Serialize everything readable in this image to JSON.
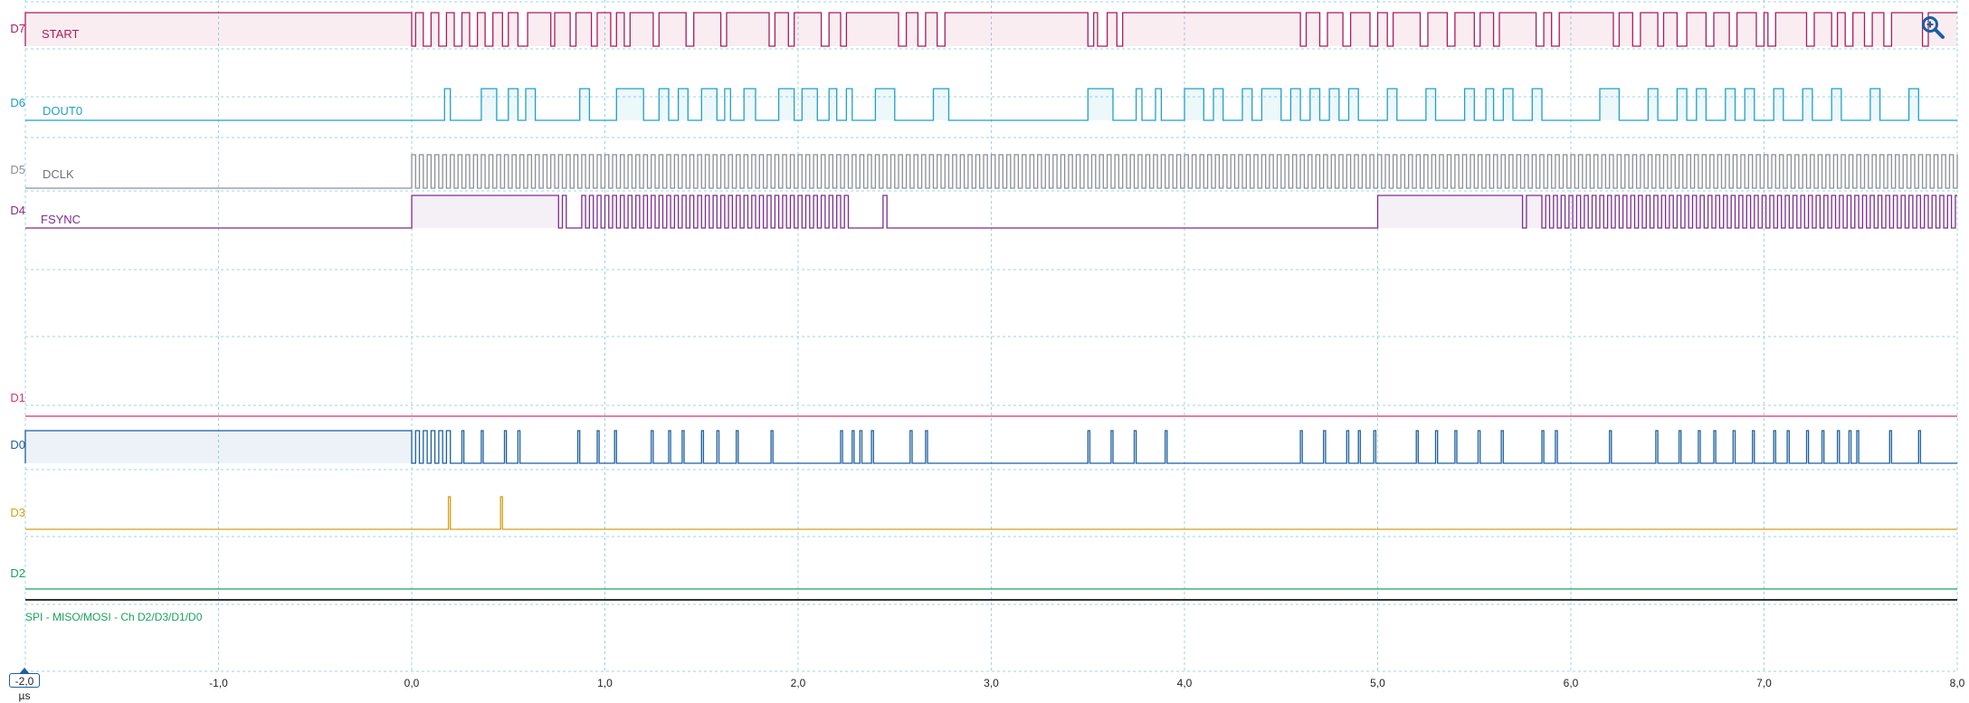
{
  "axis": {
    "unit": "µs",
    "t_min": -2.0,
    "t_max": 8.0,
    "tick_labels": [
      "-2,0 µs",
      "-1,0",
      "0,0",
      "1,0",
      "2,0",
      "3,0",
      "4,0",
      "5,0",
      "6,0",
      "7,0",
      "8,0"
    ]
  },
  "cursor": {
    "label": "-2,0 µs"
  },
  "channels": [
    {
      "id": "D7",
      "name": "START",
      "color": "#b0195a",
      "transitions": [
        -2.0,
        0.0,
        0.02,
        0.06,
        0.1,
        0.14,
        0.18,
        0.22,
        0.26,
        0.3,
        0.34,
        0.38,
        0.42,
        0.47,
        0.5,
        0.55,
        0.6,
        0.72,
        0.74,
        0.82,
        0.85,
        0.93,
        0.96,
        1.03,
        1.06,
        1.1,
        1.13,
        1.25,
        1.28,
        1.42,
        1.46,
        1.6,
        1.63,
        1.85,
        1.88,
        1.95,
        1.98,
        2.12,
        2.16,
        2.22,
        2.25,
        2.52,
        2.56,
        2.62,
        2.66,
        2.72,
        2.76,
        3.5,
        3.53,
        3.55,
        3.6,
        3.65,
        3.68,
        4.6,
        4.63,
        4.7,
        4.74,
        4.82,
        4.86,
        4.96,
        5.0,
        5.05,
        5.08,
        5.22,
        5.26,
        5.36,
        5.4,
        5.5,
        5.53,
        5.6,
        5.63,
        5.82,
        5.86,
        5.9,
        5.94,
        6.22,
        6.25,
        6.32,
        6.36,
        6.45,
        6.48,
        6.55,
        6.6,
        6.7,
        6.74,
        6.82,
        6.86,
        6.96,
        7.0,
        7.02,
        7.06,
        7.22,
        7.26,
        7.35,
        7.38,
        7.42,
        7.46,
        7.52,
        7.56,
        7.62,
        7.66,
        7.82,
        7.85
      ]
    },
    {
      "id": "D6",
      "name": "DOUT0",
      "color": "#1fa0c8",
      "transitions": [
        0.17,
        0.2,
        0.36,
        0.44,
        0.5,
        0.55,
        0.59,
        0.64,
        0.87,
        0.92,
        1.06,
        1.2,
        1.28,
        1.33,
        1.38,
        1.43,
        1.5,
        1.58,
        1.62,
        1.65,
        1.72,
        1.78,
        1.9,
        1.98,
        2.02,
        2.1,
        2.16,
        2.2,
        2.25,
        2.28,
        2.4,
        2.5,
        2.7,
        2.78,
        3.5,
        3.63,
        3.75,
        3.78,
        3.85,
        3.88,
        4.0,
        4.1,
        4.15,
        4.2,
        4.3,
        4.35,
        4.4,
        4.5,
        4.55,
        4.6,
        4.65,
        4.7,
        4.75,
        4.8,
        4.85,
        4.9,
        5.05,
        5.1,
        5.25,
        5.3,
        5.45,
        5.5,
        5.56,
        5.6,
        5.65,
        5.7,
        5.8,
        5.85,
        6.15,
        6.25,
        6.4,
        6.45,
        6.55,
        6.6,
        6.65,
        6.7,
        6.8,
        6.85,
        6.9,
        6.95,
        7.05,
        7.1,
        7.2,
        7.25,
        7.35,
        7.4,
        7.55,
        7.6,
        7.75,
        7.8
      ]
    },
    {
      "id": "D5",
      "name": "DCLK",
      "color": "#8a8f96",
      "clock_period": 0.04,
      "clock_start": 0.0
    },
    {
      "id": "D4",
      "name": "FSYNC",
      "color": "#7b2d8e",
      "transitions": [
        0.0,
        0.76,
        0.78,
        0.8,
        0.88,
        0.9,
        0.92,
        0.94,
        0.96,
        0.98,
        1.0,
        1.02,
        1.04,
        1.06,
        1.08,
        1.1,
        1.12,
        1.14,
        1.16,
        1.18,
        1.2,
        1.22,
        1.24,
        1.26,
        1.28,
        1.3,
        1.32,
        1.34,
        1.36,
        1.38,
        1.4,
        1.42,
        1.44,
        1.46,
        1.48,
        1.5,
        1.52,
        1.54,
        1.56,
        1.58,
        1.6,
        1.62,
        1.64,
        1.66,
        1.68,
        1.7,
        1.72,
        1.74,
        1.76,
        1.78,
        1.8,
        1.82,
        1.84,
        1.86,
        1.88,
        1.9,
        1.92,
        1.94,
        1.96,
        1.98,
        2.0,
        2.02,
        2.04,
        2.06,
        2.08,
        2.1,
        2.12,
        2.14,
        2.16,
        2.18,
        2.2,
        2.22,
        2.24,
        2.26,
        2.44,
        2.46,
        5.0,
        5.75,
        5.77,
        5.85,
        5.87,
        5.89,
        5.91,
        5.93,
        5.95,
        5.97,
        5.99,
        6.01,
        6.03,
        6.05,
        6.07,
        6.09,
        6.11,
        6.13,
        6.15,
        6.17,
        6.19,
        6.21,
        6.23,
        6.25,
        6.27,
        6.29,
        6.31,
        6.33,
        6.35,
        6.37,
        6.39,
        6.41,
        6.43,
        6.45,
        6.47,
        6.49,
        6.51,
        6.53,
        6.55,
        6.57,
        6.59,
        6.61,
        6.63,
        6.65,
        6.67,
        6.69,
        6.71,
        6.73,
        6.75,
        6.77,
        6.79,
        6.81,
        6.83,
        6.85,
        6.87,
        6.89,
        6.91,
        6.93,
        6.95,
        6.97,
        6.99,
        7.01,
        7.03,
        7.05,
        7.07,
        7.09,
        7.11,
        7.13,
        7.15,
        7.17,
        7.19,
        7.21,
        7.23,
        7.25,
        7.27,
        7.29,
        7.31,
        7.33,
        7.35,
        7.37,
        7.39,
        7.41,
        7.43,
        7.45,
        7.47,
        7.49,
        7.51,
        7.53,
        7.55,
        7.57,
        7.59,
        7.61,
        7.63,
        7.65,
        7.67,
        7.69,
        7.71,
        7.73,
        7.75,
        7.77,
        7.79,
        7.81,
        7.83,
        7.85,
        7.87,
        7.89,
        7.91,
        7.93,
        7.95,
        7.97,
        7.99,
        8.01,
        8.03,
        8.05,
        8.07,
        8.09,
        8.11,
        8.13,
        8.15,
        8.17,
        8.19,
        8.21,
        8.23,
        8.25,
        8.27,
        8.29,
        8.31,
        8.33,
        8.35,
        8.37,
        8.39,
        8.41,
        8.43,
        8.45,
        8.47,
        8.49
      ]
    },
    {
      "id": "D1",
      "name": "",
      "color": "#d6336c",
      "transitions": []
    },
    {
      "id": "D0",
      "name": "",
      "color": "#1a5fa0",
      "transitions": [
        -2.0,
        0.0,
        0.02,
        0.04,
        0.06,
        0.08,
        0.1,
        0.12,
        0.14,
        0.16,
        0.18,
        0.2,
        0.26,
        0.27,
        0.36,
        0.37,
        0.48,
        0.49,
        0.55,
        0.56,
        0.86,
        0.87,
        0.96,
        0.97,
        1.05,
        1.06,
        1.24,
        1.25,
        1.33,
        1.34,
        1.4,
        1.41,
        1.5,
        1.51,
        1.58,
        1.59,
        1.68,
        1.69,
        1.86,
        1.87,
        2.22,
        2.23,
        2.28,
        2.29,
        2.32,
        2.33,
        2.38,
        2.39,
        2.58,
        2.59,
        2.66,
        2.67,
        3.5,
        3.51,
        3.62,
        3.63,
        3.74,
        3.75,
        3.9,
        3.91,
        4.6,
        4.61,
        4.72,
        4.73,
        4.84,
        4.85,
        4.9,
        4.91,
        4.98,
        4.99,
        5.2,
        5.21,
        5.3,
        5.31,
        5.4,
        5.41,
        5.52,
        5.53,
        5.64,
        5.65,
        5.85,
        5.86,
        5.92,
        5.93,
        6.2,
        6.21,
        6.44,
        6.45,
        6.56,
        6.57,
        6.66,
        6.67,
        6.74,
        6.75,
        6.84,
        6.85,
        6.94,
        6.95,
        7.05,
        7.06,
        7.12,
        7.13,
        7.22,
        7.23,
        7.3,
        7.31,
        7.38,
        7.39,
        7.44,
        7.45,
        7.48,
        7.49,
        7.65,
        7.66,
        7.8,
        7.81
      ]
    },
    {
      "id": "D3",
      "name": "",
      "color": "#d4a017",
      "transitions": [
        0.19,
        0.2,
        0.46,
        0.47
      ]
    },
    {
      "id": "D2",
      "name": "",
      "color": "#1aa35c",
      "transitions": []
    }
  ],
  "decoder": {
    "label": "SPI - MISO/MOSI - Ch D2/D3/D1/D0"
  }
}
